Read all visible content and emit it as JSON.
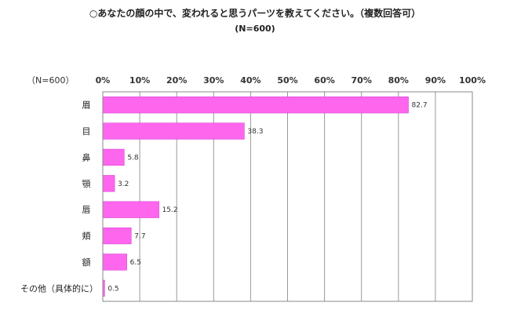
{
  "chart_data": {
    "type": "bar",
    "orientation": "horizontal",
    "title": "○あなたの顔の中で、変われると思うパーツを教えてください。（複数回答可）",
    "subtitle": "(N=600)",
    "n_label": "（N=600）",
    "categories": [
      "眉",
      "目",
      "鼻",
      "顎",
      "唇",
      "頬",
      "額",
      "その他（具体的に）"
    ],
    "values": [
      82.7,
      38.3,
      5.8,
      3.2,
      15.2,
      7.7,
      6.5,
      0.5
    ],
    "value_labels": [
      "82.7",
      "38.3",
      "5.8",
      "3.2",
      "15.2",
      "7.7",
      "6.5",
      "0.5"
    ],
    "xlim": [
      0,
      100
    ],
    "xticks": [
      "0%",
      "10%",
      "20%",
      "30%",
      "40%",
      "50%",
      "60%",
      "70%",
      "80%",
      "90%",
      "100%"
    ],
    "grid": true,
    "bar_color": "#ff66ee",
    "bar_edge_color": "#cc33cc",
    "grid_color": "#999999"
  }
}
